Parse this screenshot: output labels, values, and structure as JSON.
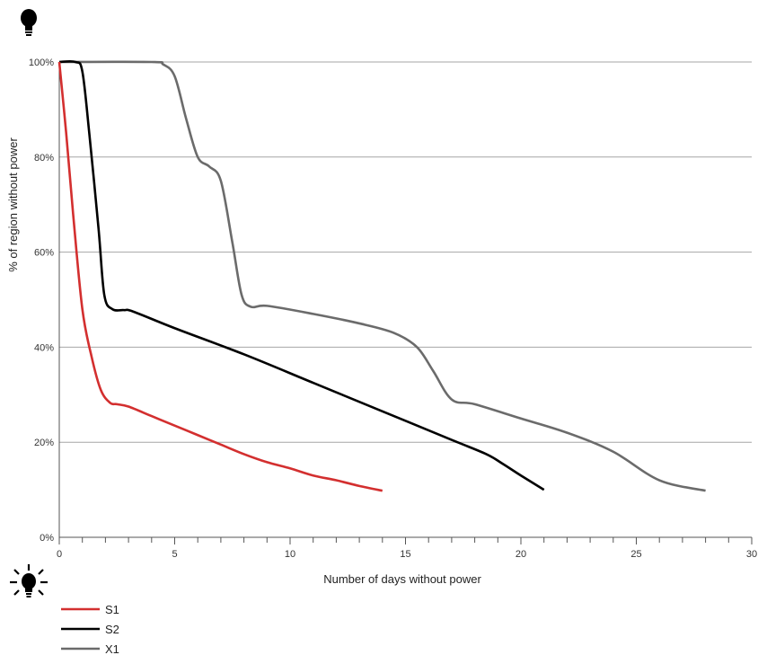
{
  "chart_data": {
    "type": "line",
    "title": "",
    "xlabel": "Number of days without power",
    "ylabel": "% of region without power",
    "xlim": [
      0,
      30
    ],
    "ylim": [
      0,
      100
    ],
    "x_ticks": [
      0,
      5,
      10,
      15,
      20,
      25,
      30
    ],
    "x_tick_labels": [
      "0",
      "5",
      "10",
      "15",
      "20",
      "25",
      "30"
    ],
    "x_minor_step": 1,
    "y_ticks": [
      0,
      20,
      40,
      60,
      80,
      100
    ],
    "y_tick_labels": [
      "0%",
      "20%",
      "40%",
      "60%",
      "80%",
      "100%"
    ],
    "grid": "horizontal",
    "legend_position": "bottom-left",
    "top_icon": "lightbulb-off-icon",
    "bottom_icon": "lightbulb-on-icon",
    "series": [
      {
        "name": "S1",
        "color": "#d32f2f",
        "x": [
          0,
          0.3,
          0.6,
          1.0,
          1.4,
          1.8,
          2.2,
          2.5,
          3.0,
          4.0,
          5.0,
          6.0,
          7.0,
          8.0,
          9.0,
          10.0,
          11.0,
          12.0,
          13.0,
          14.0
        ],
        "y": [
          100,
          85,
          68,
          48,
          38,
          31,
          28.3,
          28,
          27.5,
          25.5,
          23.5,
          21.5,
          19.5,
          17.5,
          15.8,
          14.5,
          13,
          12,
          10.8,
          9.8
        ]
      },
      {
        "name": "S2",
        "color": "#000000",
        "x": [
          0,
          0.7,
          1.0,
          1.3,
          1.7,
          1.95,
          2.3,
          2.8,
          3.2,
          5.0,
          8.0,
          11.0,
          14.0,
          17.0,
          18.5,
          19.2,
          20.0,
          21.0
        ],
        "y": [
          100,
          100,
          98,
          85,
          65,
          51,
          48,
          47.8,
          47.5,
          44,
          38.5,
          32.5,
          26.5,
          20.5,
          17.5,
          15.5,
          13,
          10
        ]
      },
      {
        "name": "X1",
        "color": "#6b6b6b",
        "x": [
          0,
          4.0,
          4.5,
          5.0,
          5.5,
          6.0,
          6.5,
          7.0,
          7.5,
          7.9,
          8.3,
          9.0,
          11.0,
          13.0,
          14.5,
          15.5,
          16.2,
          17.0,
          18.0,
          20.0,
          22.0,
          24.0,
          26.0,
          28.0
        ],
        "y": [
          100,
          100,
          99.5,
          97,
          88,
          80,
          78,
          75,
          62,
          51,
          48.5,
          48.7,
          47,
          45,
          43,
          40,
          35,
          29,
          28,
          25,
          22,
          18,
          12,
          9.8
        ]
      }
    ]
  }
}
